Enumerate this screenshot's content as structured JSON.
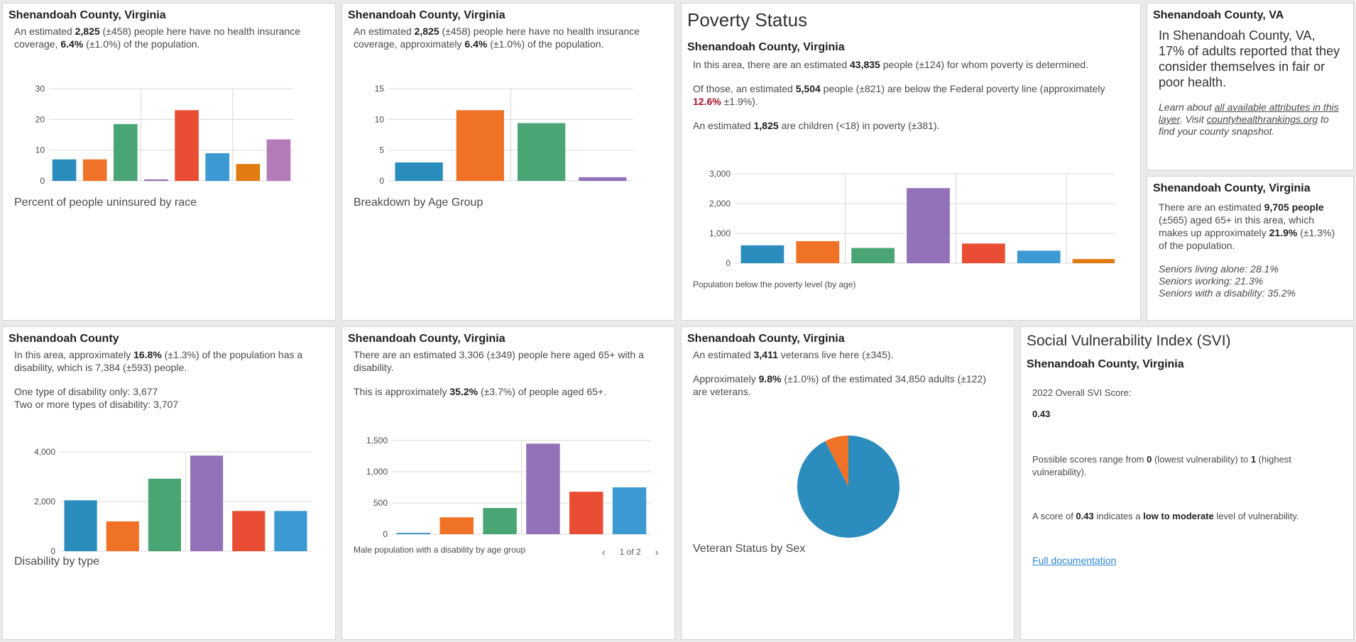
{
  "c1": {
    "title": "Shenandoah County, Virginia",
    "l1": "An estimated ",
    "n1": "2,825",
    "l2": " (±458) people here have no health insurance coverage, ",
    "n2": "6.4%",
    "l3": " (±1.0%) of the population.",
    "caption": "Percent of people uninsured by race"
  },
  "c2": {
    "title": "Shenandoah County, Virginia",
    "l1": "An estimated ",
    "n1": "2,825",
    "l2": " (±458) people here have no health insurance coverage, approximately ",
    "n2": "6.4%",
    "l3": " (±1.0%) of the population.",
    "caption": "Breakdown by Age Group"
  },
  "c3": {
    "heading": "Poverty Status",
    "title": "Shenandoah County, Virginia",
    "p1a": "In this area, there are an estimated ",
    "p1n": "43,835",
    "p1b": " people (±124) for whom poverty is determined.",
    "p2a": "Of those, an estimated ",
    "p2n": "5,504",
    "p2b": " people (±821) are below the Federal poverty line (approximately ",
    "p2r": "12.6%",
    "p2c": " ±1.9%).",
    "p3a": "An estimated ",
    "p3n": "1,825",
    "p3b": " are children (<18) in poverty (±381).",
    "caption": "Population below the poverty level (by age)"
  },
  "c4": {
    "title": "Shenandoah County, VA",
    "main": "In Shenandoah County, VA, 17% of adults reported that they consider themselves in fair or poor health.",
    "i1": "Learn about ",
    "link1": "all available attributes in this layer",
    "i2": ". Visit ",
    "link2": "countyhealthrankings.org",
    "i3": " to find your county snapshot."
  },
  "c5": {
    "title": "Shenandoah County, Virginia",
    "l1": "There are an estimated ",
    "n1": "9,705 people",
    "l2": " (±565) aged 65+ in this area, which makes up approximately ",
    "n2": "21.9%",
    "l3": " (±1.3%) of the population.",
    "s1": "Seniors living alone: 28.1%",
    "s2": "Seniors working: 21.3%",
    "s3": "Seniors with a disability: 35.2%"
  },
  "c6": {
    "title": "Shenandoah County",
    "l1": "In this area, approximately ",
    "n1": "16.8%",
    "l2": " (±1.3%) of the population has a disability, which is 7,384 (±593) people.",
    "o1": "One type of disability only: 3,677",
    "o2": "Two or more types of disability: 3,707",
    "caption": "Disability by type"
  },
  "c7": {
    "title": "Shenandoah County, Virginia",
    "l1": "There are an estimated 3,306 (±349) people here aged 65+ with a disability.",
    "l2a": "This is approximately ",
    "l2n": "35.2%",
    "l2b": " (±3.7%) of people aged 65+.",
    "caption": "Male population with a disability by age group",
    "pager": "1 of 2"
  },
  "c8": {
    "title": "Shenandoah County, Virginia",
    "l1a": "An estimated ",
    "l1n": "3,411",
    "l1b": " veterans live here (±345).",
    "l2a": "Approximately ",
    "l2n": "9.8%",
    "l2b": " (±1.0%) of the estimated 34,850 adults (±122) are veterans.",
    "caption": "Veteran Status by Sex"
  },
  "c9": {
    "heading": "Social Vulnerability Index (SVI)",
    "title": "Shenandoah County, Virginia",
    "label": "2022 Overall SVI Score:",
    "score": "0.43",
    "r1": "Possible scores range from ",
    "r0": "0",
    "r2": " (lowest vulnerability) to ",
    "r3": "1",
    "r4": " (highest vulnerability).",
    "s1": "A score of ",
    "s2": "0.43",
    "s3": " indicates a ",
    "s4": "low to moderate",
    "s5": " level of vulnerability.",
    "link": "Full documentation"
  },
  "chart_data": [
    {
      "id": "uninsured-race",
      "type": "bar",
      "values": [
        7,
        7,
        18.5,
        0.5,
        23,
        9,
        5.5,
        13.5
      ],
      "colors": [
        "#2b8cbe",
        "#f07226",
        "#4aa574",
        "#9271b8",
        "#e94e35",
        "#3d99d1",
        "#e07b10",
        "#b57ab8"
      ],
      "ylim": [
        0,
        30
      ],
      "yticks": [
        "0",
        "10",
        "20",
        "30"
      ],
      "ytick_values": [
        0,
        10,
        20,
        30
      ],
      "groups": [
        3,
        6
      ]
    },
    {
      "id": "uninsured-age",
      "type": "bar",
      "values": [
        3,
        11.5,
        9.4,
        0.6
      ],
      "colors": [
        "#2b8cbe",
        "#f07226",
        "#4aa574",
        "#9271b8"
      ],
      "ylim": [
        0,
        15
      ],
      "yticks": [
        "0",
        "5",
        "10",
        "15"
      ],
      "ytick_values": [
        0,
        5,
        10,
        15
      ],
      "groups": [
        2
      ]
    },
    {
      "id": "poverty-age",
      "type": "bar",
      "values": [
        600,
        740,
        510,
        2520,
        660,
        420,
        140
      ],
      "colors": [
        "#2b8cbe",
        "#f07226",
        "#4aa574",
        "#9271b8",
        "#e94e35",
        "#3d99d1",
        "#e07b10"
      ],
      "ylim": [
        0,
        3000
      ],
      "yticks": [
        "0",
        "1,000",
        "2,000",
        "3,000"
      ],
      "ytick_values": [
        0,
        1000,
        2000,
        3000
      ],
      "groups": [
        2,
        4,
        6
      ]
    },
    {
      "id": "disability-type",
      "type": "bar",
      "values": [
        2050,
        1200,
        2920,
        3850,
        1620,
        1620
      ],
      "colors": [
        "#2b8cbe",
        "#f07226",
        "#4aa574",
        "#9271b8",
        "#e94e35",
        "#3d99d1"
      ],
      "ylim": [
        0,
        4000
      ],
      "yticks": [
        "0",
        "2,000",
        "4,000"
      ],
      "ytick_values": [
        0,
        2000,
        4000
      ],
      "groups": [
        3
      ]
    },
    {
      "id": "male-disability-age",
      "type": "bar",
      "values": [
        20,
        270,
        420,
        1450,
        680,
        750
      ],
      "colors": [
        "#2b8cbe",
        "#f07226",
        "#4aa574",
        "#9271b8",
        "#e94e35",
        "#3d99d1"
      ],
      "ylim": [
        0,
        1500
      ],
      "yticks": [
        "0",
        "500",
        "1,000",
        "1,500"
      ],
      "ytick_values": [
        0,
        500,
        1000,
        1500
      ],
      "groups": [
        3
      ]
    },
    {
      "id": "veteran-sex",
      "type": "pie",
      "values": [
        92.5,
        7.5
      ],
      "colors": [
        "#2b8cbe",
        "#f07226"
      ]
    }
  ]
}
